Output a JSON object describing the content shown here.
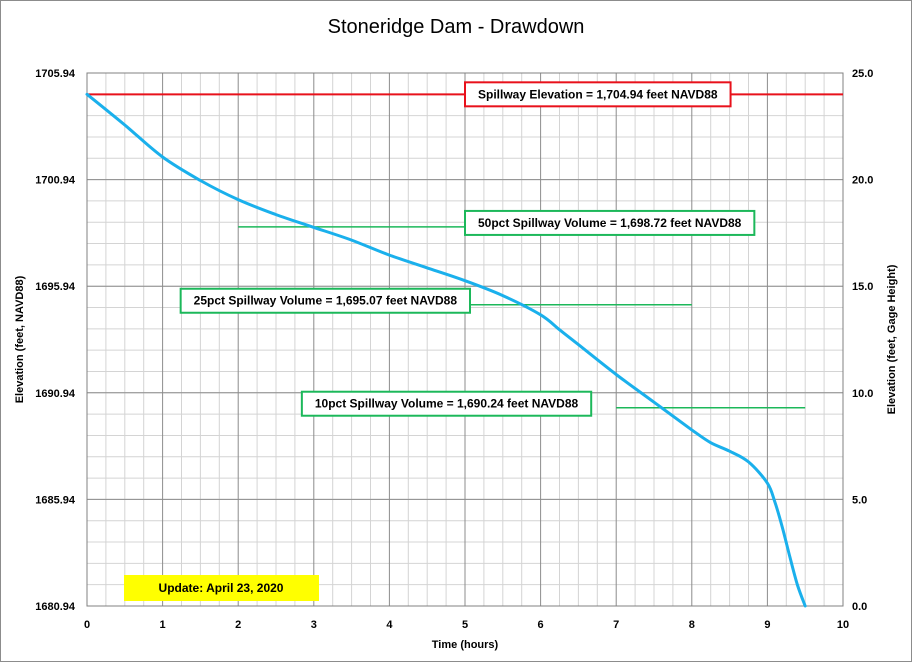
{
  "chart_data": {
    "type": "line",
    "title": "Stoneridge Dam - Drawdown",
    "xlabel": "Time (hours)",
    "ylabel_left": "Elevation  (feet, NAVD88)",
    "ylabel_right": "Elevation  (feet, Gage  Height)",
    "xlim": [
      0,
      10
    ],
    "ylim_left": [
      1680.94,
      1705.94
    ],
    "ylim_right": [
      0,
      25
    ],
    "grid": true,
    "x_ticks": [
      "0",
      "1",
      "2",
      "3",
      "4",
      "5",
      "6",
      "7",
      "8",
      "9",
      "10"
    ],
    "y_left_ticks": [
      "1680.94",
      "1685.94",
      "1690.94",
      "1695.94",
      "1700.94",
      "1705.94"
    ],
    "y_right_ticks": [
      "0.0",
      "5.0",
      "10.0",
      "15.0",
      "20.0",
      "25.0"
    ],
    "series": [
      {
        "color": "#1ab0ec",
        "x": [
          0,
          0.5,
          1,
          1.5,
          2,
          2.5,
          3,
          3.5,
          4,
          4.5,
          5,
          5.5,
          6,
          6.25,
          6.5,
          7,
          7.5,
          8,
          8.25,
          8.5,
          8.75,
          9,
          9.1,
          9.2,
          9.3,
          9.4,
          9.5
        ],
        "y": [
          1704.94,
          1703.5,
          1702.0,
          1700.9,
          1700.0,
          1699.3,
          1698.7,
          1698.1,
          1697.4,
          1696.8,
          1696.2,
          1695.5,
          1694.6,
          1693.9,
          1693.2,
          1691.8,
          1690.5,
          1689.2,
          1688.6,
          1688.2,
          1687.7,
          1686.7,
          1685.8,
          1684.6,
          1683.2,
          1681.9,
          1680.94
        ]
      }
    ],
    "reference_lines": [
      {
        "label": "Spillway Elevation = 1,704.94  feet NAVD88",
        "y": 1704.94,
        "x_start": 0,
        "x_end": 10,
        "color": "#e8111b"
      },
      {
        "label": "50pct Spillway Volume = 1,698.72  feet NAVD88",
        "y": 1698.72,
        "x_start": 2,
        "x_end": 5,
        "color": "#1cb85a"
      },
      {
        "label": "25pct Spillway Volume = 1,695.07  feet NAVD88",
        "y": 1695.07,
        "x_start": 5,
        "x_end": 8,
        "color": "#1cb85a"
      },
      {
        "label": "10pct Spillway Volume = 1,690.24  feet NAVD88",
        "y": 1690.24,
        "x_start": 7,
        "x_end": 9.5,
        "color": "#1cb85a"
      }
    ],
    "annotation": {
      "text": "Update: April 23, 2020",
      "background": "#ffff00"
    }
  }
}
